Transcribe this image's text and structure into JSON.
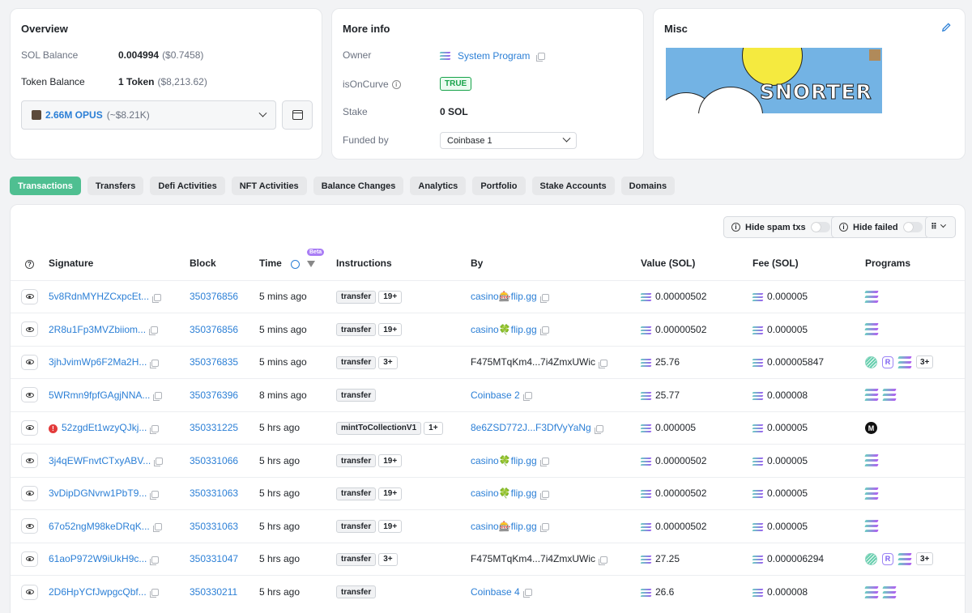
{
  "overview": {
    "title": "Overview",
    "sol_balance_label": "SOL Balance",
    "sol_balance_value": "0.004994",
    "sol_balance_usd": "($0.7458)",
    "token_balance_label": "Token Balance",
    "token_balance_value": "1 Token",
    "token_balance_usd": "($8,213.62)",
    "token_select_amount": "2.66M OPUS",
    "token_select_usd": "(~$8.21K)"
  },
  "more_info": {
    "title": "More info",
    "owner_label": "Owner",
    "owner_value": "System Program",
    "curve_label": "isOnCurve",
    "curve_value": "TRUE",
    "stake_label": "Stake",
    "stake_value": "0 SOL",
    "funded_label": "Funded by",
    "funded_value": "Coinbase 1"
  },
  "misc": {
    "title": "Misc",
    "banner_text": "SNORTER"
  },
  "tabs": [
    "Transactions",
    "Transfers",
    "Defi Activities",
    "NFT Activities",
    "Balance Changes",
    "Analytics",
    "Portfolio",
    "Stake Accounts",
    "Domains"
  ],
  "filters": {
    "hide_spam": "Hide spam txs",
    "hide_failed": "Hide failed",
    "beta": "Beta"
  },
  "columns": [
    "Signature",
    "Block",
    "Time",
    "Instructions",
    "By",
    "Value (SOL)",
    "Fee (SOL)",
    "Programs"
  ],
  "rows": [
    {
      "sig": "5v8RdnMYHZCxpcEt...",
      "block": "350376856",
      "time": "5 mins ago",
      "instr": "transfer",
      "instr_more": "19+",
      "by": "casino🎰flip.gg",
      "by_link": true,
      "value": "0.00000502",
      "fee": "0.000005",
      "programs": "sol",
      "failed": false
    },
    {
      "sig": "2R8u1Fp3MVZbiiom...",
      "block": "350376856",
      "time": "5 mins ago",
      "instr": "transfer",
      "instr_more": "19+",
      "by": "casino🍀flip.gg",
      "by_link": true,
      "value": "0.00000502",
      "fee": "0.000005",
      "programs": "sol",
      "failed": false
    },
    {
      "sig": "3jhJvimWp6F2Ma2H...",
      "block": "350376835",
      "time": "5 mins ago",
      "instr": "transfer",
      "instr_more": "3+",
      "by": "F475MTqKm4...7i4ZmxUWic",
      "by_link": false,
      "value": "25.76",
      "fee": "0.000005847",
      "programs": "multi",
      "failed": false
    },
    {
      "sig": "5WRmn9fpfGAgjNNA...",
      "block": "350376396",
      "time": "8 mins ago",
      "instr": "transfer",
      "instr_more": "",
      "by": "Coinbase 2",
      "by_link": true,
      "value": "25.77",
      "fee": "0.000008",
      "programs": "double",
      "failed": false
    },
    {
      "sig": "52zgdEt1wzyQJkj...",
      "block": "350331225",
      "time": "5 hrs ago",
      "instr": "mintToCollectionV1",
      "instr_more": "1+",
      "by": "8e6ZSD772J...F3DfVyYaNg",
      "by_link": true,
      "value": "0.000005",
      "fee": "0.000005",
      "programs": "black",
      "failed": true
    },
    {
      "sig": "3j4qEWFnvtCTxyABV...",
      "block": "350331066",
      "time": "5 hrs ago",
      "instr": "transfer",
      "instr_more": "19+",
      "by": "casino🍀flip.gg",
      "by_link": true,
      "value": "0.00000502",
      "fee": "0.000005",
      "programs": "sol",
      "failed": false
    },
    {
      "sig": "3vDipDGNvrw1PbT9...",
      "block": "350331063",
      "time": "5 hrs ago",
      "instr": "transfer",
      "instr_more": "19+",
      "by": "casino🍀flip.gg",
      "by_link": true,
      "value": "0.00000502",
      "fee": "0.000005",
      "programs": "sol",
      "failed": false
    },
    {
      "sig": "67o52ngM98keDRqK...",
      "block": "350331063",
      "time": "5 hrs ago",
      "instr": "transfer",
      "instr_more": "19+",
      "by": "casino🎰flip.gg",
      "by_link": true,
      "value": "0.00000502",
      "fee": "0.000005",
      "programs": "sol",
      "failed": false
    },
    {
      "sig": "61aoP972W9iUkH9c...",
      "block": "350331047",
      "time": "5 hrs ago",
      "instr": "transfer",
      "instr_more": "3+",
      "by": "F475MTqKm4...7i4ZmxUWic",
      "by_link": false,
      "value": "27.25",
      "fee": "0.000006294",
      "programs": "multi",
      "failed": false
    },
    {
      "sig": "2D6HpYCfJwpgcQbf...",
      "block": "350330211",
      "time": "5 hrs ago",
      "instr": "transfer",
      "instr_more": "",
      "by": "Coinbase 4",
      "by_link": true,
      "value": "26.6",
      "fee": "0.000008",
      "programs": "double",
      "failed": false
    }
  ],
  "programs_more": "3+",
  "colors": {
    "accent": "#4fbf91",
    "link": "#2b7fd6",
    "error": "#e33b3b"
  }
}
